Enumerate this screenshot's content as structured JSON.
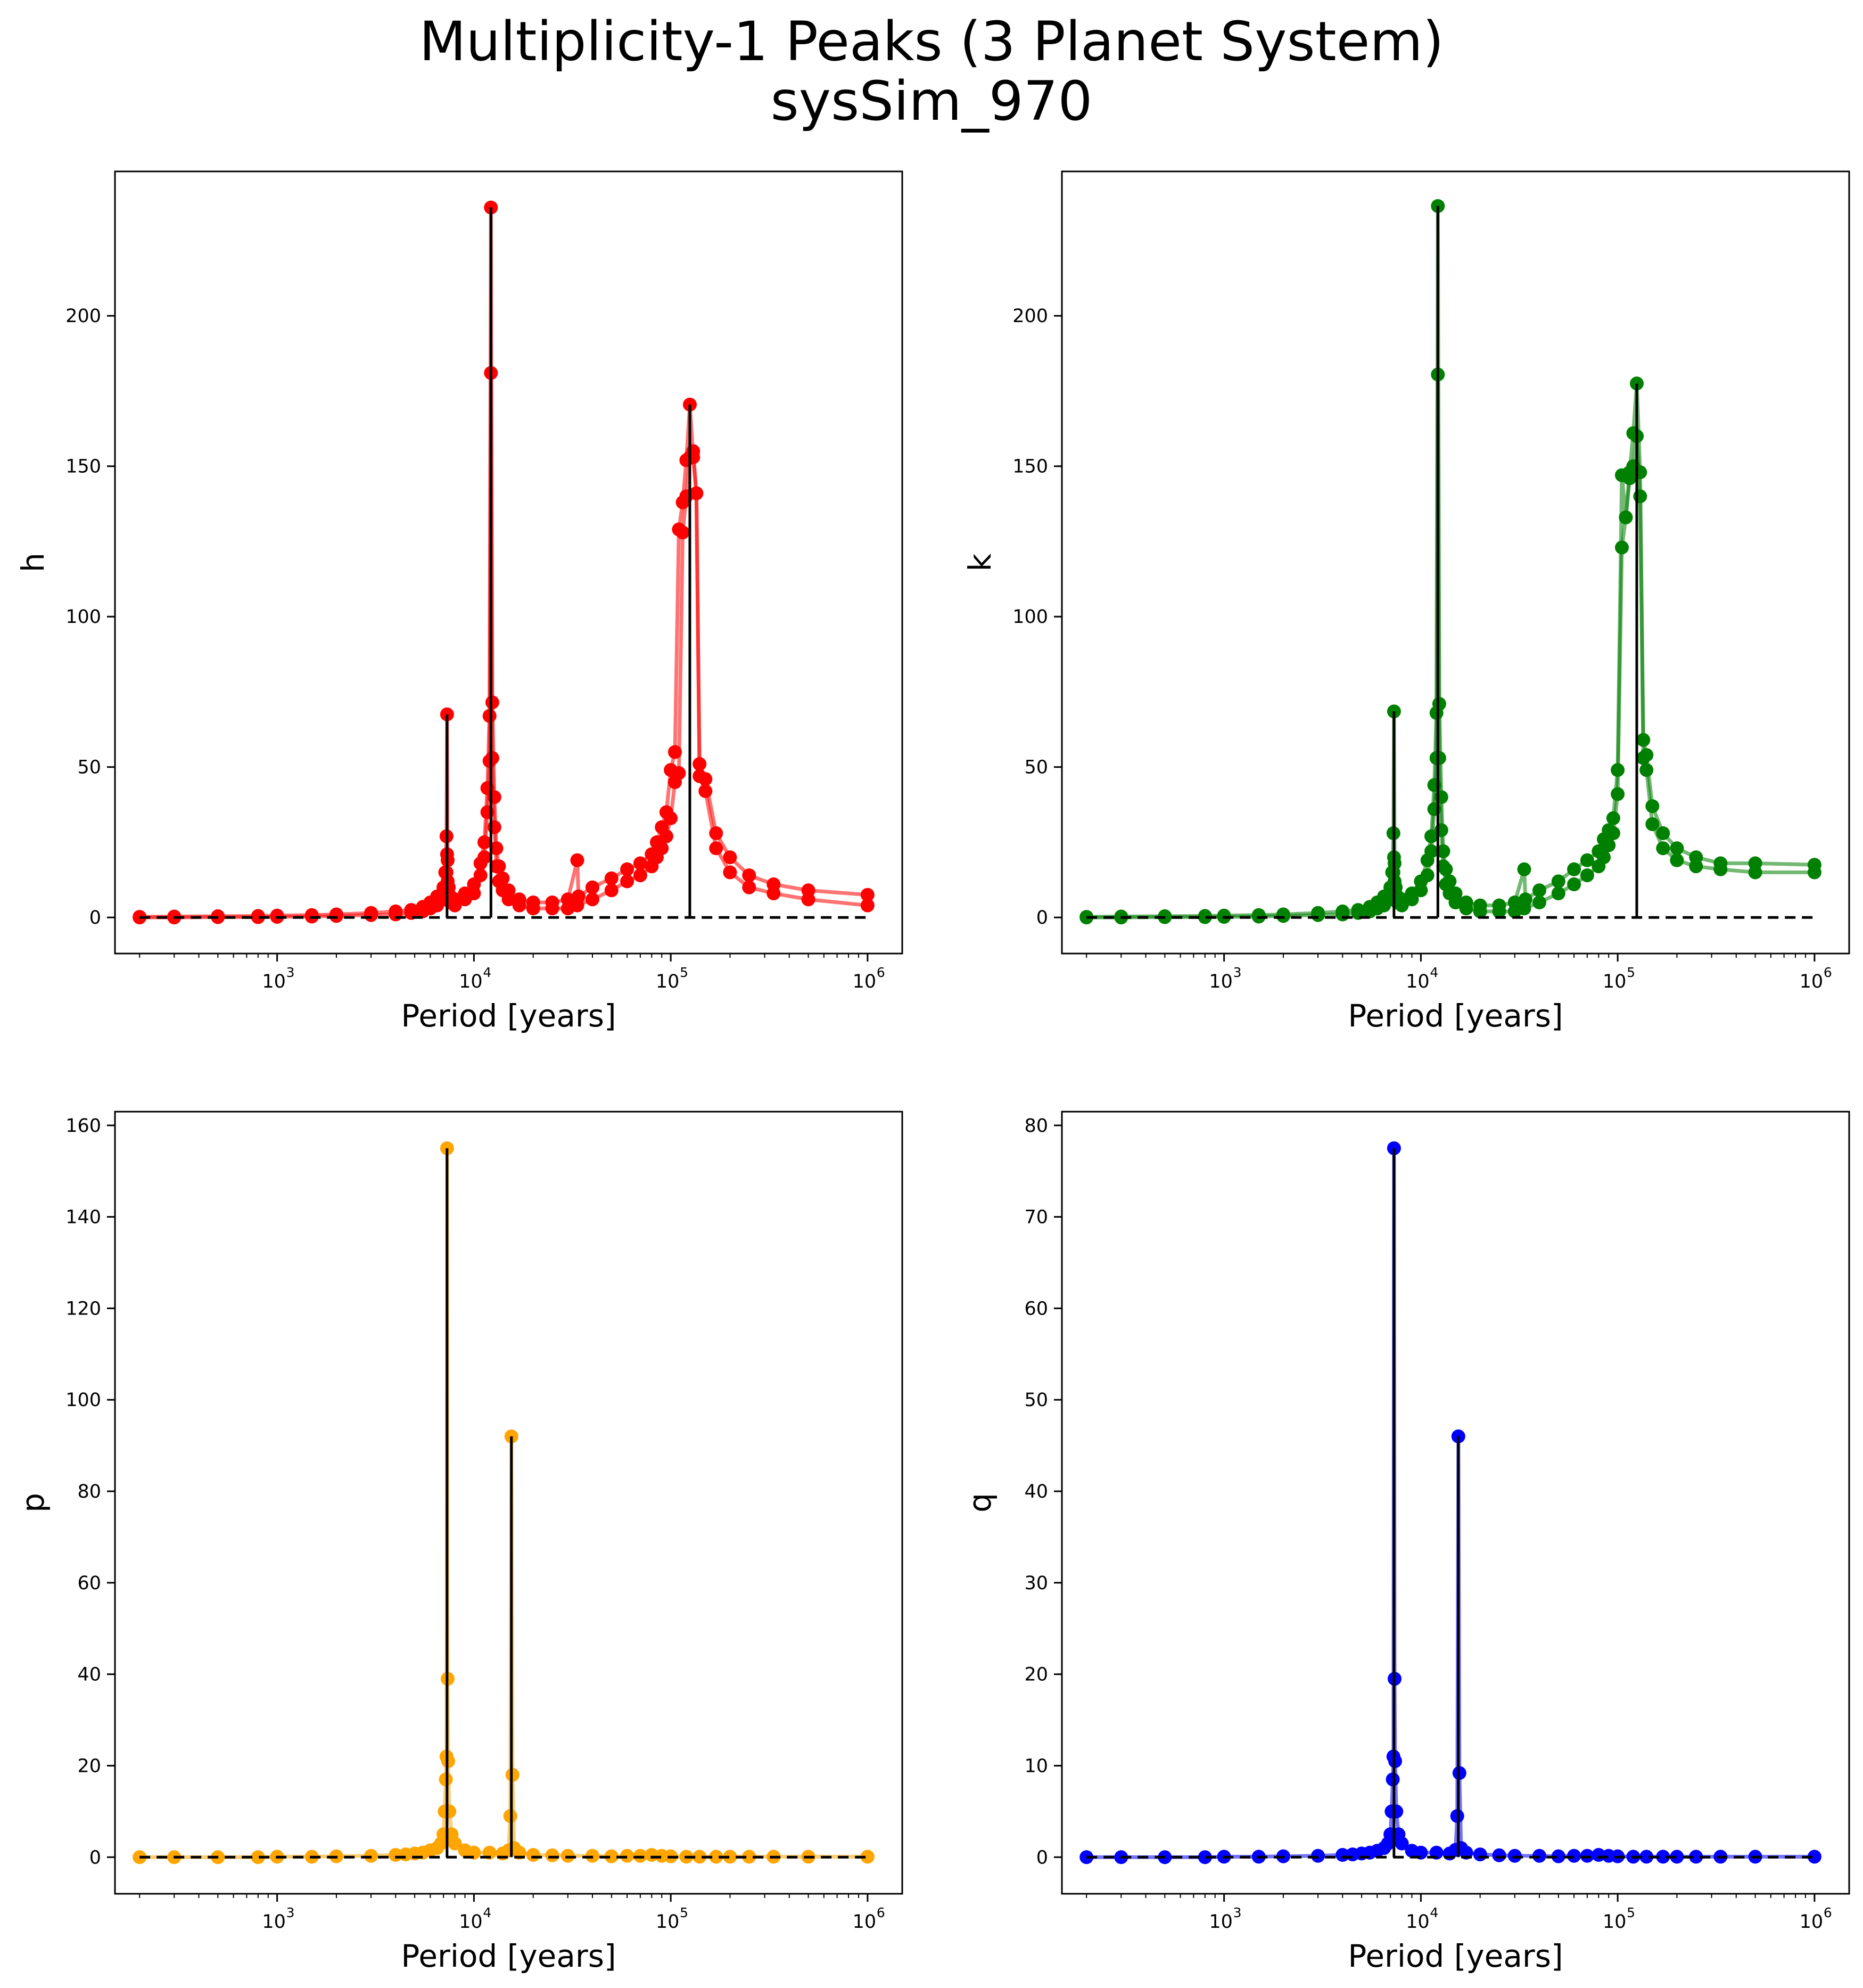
{
  "figure": {
    "title_line1": "Multiplicity-1 Peaks (3 Planet System)",
    "title_line2": "sysSim_970"
  },
  "chart_data": [
    {
      "type": "scatter",
      "panel": "top-left",
      "xlabel": "Period [years]",
      "ylabel": "h",
      "xscale": "log",
      "xlim": [
        150,
        1500000
      ],
      "ylim": [
        -12,
        248
      ],
      "yticks": [
        0,
        50,
        100,
        150,
        200
      ],
      "color": "#ff0000",
      "peaks": [
        {
          "x": 7300,
          "y": 67.5
        },
        {
          "x": 12200,
          "y": 236
        },
        {
          "x": 125000,
          "y": 170.5
        }
      ],
      "series": [
        {
          "x": [
            200,
            300,
            500,
            800,
            1000,
            1500,
            2000,
            3000,
            4000,
            4800,
            5500,
            6000,
            6500,
            7000,
            7150,
            7250,
            7300,
            7350,
            7450,
            7600,
            8000,
            9000,
            10000,
            10800,
            11300,
            11700,
            12000,
            12200,
            12400,
            12700,
            13000,
            13400,
            14000,
            15000,
            17000,
            20000,
            25000,
            30000,
            33500,
            34000,
            40000,
            50000,
            60000,
            70000,
            80000,
            85000,
            90000,
            95000,
            100000,
            105000,
            110000,
            115000,
            120000,
            125000,
            130000,
            135000,
            140000,
            150000,
            170000,
            200000,
            250000,
            333000,
            500000,
            1000000
          ],
          "y": [
            0.2,
            0.3,
            0.4,
            0.5,
            0.6,
            0.8,
            1,
            1.5,
            2,
            2.5,
            3.5,
            5,
            7,
            10,
            15,
            27,
            67.5,
            19,
            10,
            7,
            6,
            8,
            11,
            18,
            25,
            43,
            67,
            236,
            71.5,
            40,
            23,
            17,
            13,
            9,
            6,
            5,
            5,
            6,
            19,
            7,
            10,
            13,
            16,
            18,
            21,
            25,
            30,
            35,
            49,
            55,
            129,
            138,
            152,
            170.5,
            153,
            141,
            51,
            46,
            28,
            20,
            14,
            11,
            9,
            7.5
          ]
        },
        {
          "x": [
            200,
            300,
            500,
            800,
            1000,
            1500,
            2000,
            3000,
            4000,
            4800,
            5500,
            6000,
            6500,
            7000,
            7150,
            7250,
            7300,
            7350,
            7450,
            7600,
            8000,
            9000,
            10000,
            10800,
            11300,
            11700,
            12000,
            12200,
            12400,
            12700,
            13000,
            13400,
            14000,
            15000,
            17000,
            20000,
            25000,
            30000,
            33500,
            40000,
            50000,
            60000,
            70000,
            80000,
            85000,
            90000,
            95000,
            100000,
            105000,
            110000,
            115000,
            120000,
            125000,
            130000,
            135000,
            140000,
            150000,
            170000,
            200000,
            250000,
            333000,
            500000,
            1000000
          ],
          "y": [
            0,
            0,
            0.1,
            0.1,
            0.2,
            0.3,
            0.5,
            0.8,
            1,
            1.5,
            2,
            3,
            4,
            6,
            10,
            15,
            21,
            12,
            7,
            5,
            4,
            6,
            8,
            14,
            20,
            35,
            52,
            181,
            53,
            30,
            17,
            12,
            9,
            6,
            4,
            3,
            3,
            3,
            4,
            6,
            9,
            12,
            14,
            17,
            20,
            23,
            27,
            33,
            45,
            48,
            128,
            140,
            153,
            155,
            141,
            47,
            42,
            23,
            15,
            10,
            8,
            6,
            4
          ]
        }
      ]
    },
    {
      "type": "scatter",
      "panel": "top-right",
      "xlabel": "Period [years]",
      "ylabel": "k",
      "xscale": "log",
      "xlim": [
        150,
        1500000
      ],
      "ylim": [
        -12,
        248
      ],
      "yticks": [
        0,
        50,
        100,
        150,
        200
      ],
      "color": "#008000",
      "peaks": [
        {
          "x": 7300,
          "y": 68.5
        },
        {
          "x": 12200,
          "y": 236.5
        },
        {
          "x": 125000,
          "y": 177.5
        }
      ],
      "series": [
        {
          "x": [
            200,
            300,
            500,
            800,
            1000,
            1500,
            2000,
            3000,
            4000,
            4800,
            5500,
            6000,
            6500,
            7000,
            7150,
            7250,
            7300,
            7350,
            7450,
            7600,
            8000,
            9000,
            10000,
            10800,
            11300,
            11700,
            12000,
            12200,
            12400,
            12700,
            13000,
            13400,
            14000,
            15000,
            17000,
            20000,
            25000,
            30000,
            33500,
            34000,
            40000,
            50000,
            60000,
            70000,
            80000,
            85000,
            90000,
            95000,
            100000,
            105000,
            110000,
            115000,
            120000,
            125000,
            130000,
            135000,
            140000,
            150000,
            170000,
            200000,
            250000,
            333000,
            500000,
            1000000
          ],
          "y": [
            0.2,
            0.3,
            0.4,
            0.5,
            0.6,
            0.8,
            1,
            1.5,
            2,
            2.5,
            3.5,
            5,
            7,
            10,
            15,
            28,
            68.5,
            18,
            10,
            7,
            6,
            8,
            12,
            19,
            27,
            44,
            68,
            236.5,
            71,
            40,
            22,
            16,
            12,
            8,
            5,
            4,
            4,
            5,
            16,
            6,
            9,
            12,
            16,
            19,
            22,
            26,
            29,
            33,
            49,
            147,
            133,
            148,
            161,
            177.5,
            148,
            59,
            54,
            37,
            28,
            23,
            20,
            18,
            18,
            17.5
          ]
        },
        {
          "x": [
            200,
            300,
            500,
            800,
            1000,
            1500,
            2000,
            3000,
            4000,
            4800,
            5500,
            6000,
            6500,
            7000,
            7150,
            7250,
            7300,
            7350,
            7450,
            7600,
            8000,
            9000,
            10000,
            10800,
            11300,
            11700,
            12000,
            12200,
            12400,
            12700,
            13000,
            13400,
            14000,
            15000,
            17000,
            20000,
            25000,
            30000,
            33500,
            40000,
            50000,
            60000,
            70000,
            80000,
            85000,
            90000,
            95000,
            100000,
            105000,
            110000,
            115000,
            120000,
            125000,
            130000,
            135000,
            140000,
            150000,
            170000,
            200000,
            250000,
            333000,
            500000,
            1000000
          ],
          "y": [
            0,
            0,
            0.1,
            0.1,
            0.2,
            0.3,
            0.5,
            0.8,
            1,
            1.5,
            2,
            3,
            4,
            6,
            10,
            15,
            20,
            12,
            7,
            5,
            4,
            6,
            9,
            14,
            22,
            36,
            53,
            180.5,
            53,
            29,
            17,
            11,
            8,
            5,
            3,
            2,
            2,
            2,
            3,
            5,
            8,
            11,
            14,
            17,
            20,
            24,
            28,
            41,
            123,
            133,
            146,
            150,
            160,
            140,
            53,
            49,
            31,
            23,
            19,
            17,
            16,
            15,
            15
          ]
        }
      ]
    },
    {
      "type": "scatter",
      "panel": "bottom-left",
      "xlabel": "Period [years]",
      "ylabel": "p",
      "xscale": "log",
      "xlim": [
        150,
        1500000
      ],
      "ylim": [
        -8,
        163
      ],
      "yticks": [
        0,
        20,
        40,
        60,
        80,
        100,
        120,
        140,
        160
      ],
      "color": "#ffa500",
      "peaks": [
        {
          "x": 7300,
          "y": 155
        },
        {
          "x": 15500,
          "y": 92
        }
      ],
      "series": [
        {
          "x": [
            200,
            300,
            500,
            800,
            1000,
            1500,
            2000,
            3000,
            4000,
            4500,
            5000,
            5500,
            6000,
            6500,
            6800,
            7000,
            7100,
            7200,
            7250,
            7300,
            7350,
            7400,
            7500,
            7700,
            8000,
            9000,
            10000,
            12000,
            14000,
            15000,
            15300,
            15500,
            15700,
            16000,
            17000,
            20000,
            25000,
            30000,
            40000,
            50000,
            60000,
            70000,
            80000,
            90000,
            100000,
            120000,
            140000,
            170000,
            200000,
            250000,
            333000,
            500000,
            1000000
          ],
          "y": [
            0,
            0,
            0,
            0,
            0.1,
            0.1,
            0.2,
            0.3,
            0.5,
            0.6,
            0.8,
            1,
            1.5,
            2,
            3,
            5,
            10,
            17,
            22,
            155,
            39,
            21,
            10,
            5,
            3,
            1.5,
            1,
            1,
            0.8,
            1.5,
            9,
            92,
            18,
            2,
            1,
            0.5,
            0.4,
            0.3,
            0.3,
            0.2,
            0.3,
            0.3,
            0.5,
            0.3,
            0.2,
            0.1,
            0.1,
            0.1,
            0.1,
            0.1,
            0.1,
            0.1,
            0.1
          ]
        }
      ]
    },
    {
      "type": "scatter",
      "panel": "bottom-right",
      "xlabel": "Period [years]",
      "ylabel": "q",
      "xscale": "log",
      "xlim": [
        150,
        1500000
      ],
      "ylim": [
        -4,
        81.5
      ],
      "yticks": [
        0,
        10,
        20,
        30,
        40,
        50,
        60,
        70,
        80
      ],
      "color": "#0000ff",
      "peaks": [
        {
          "x": 7300,
          "y": 77.5
        },
        {
          "x": 15500,
          "y": 46
        }
      ],
      "series": [
        {
          "x": [
            200,
            300,
            500,
            800,
            1000,
            1500,
            2000,
            3000,
            4000,
            4500,
            5000,
            5500,
            6000,
            6500,
            6800,
            7000,
            7100,
            7200,
            7250,
            7300,
            7350,
            7400,
            7500,
            7700,
            8000,
            9000,
            10000,
            12000,
            14000,
            15000,
            15300,
            15500,
            15700,
            16000,
            17000,
            20000,
            25000,
            30000,
            40000,
            50000,
            60000,
            70000,
            80000,
            90000,
            100000,
            120000,
            140000,
            170000,
            200000,
            250000,
            333000,
            500000,
            1000000
          ],
          "y": [
            0,
            0,
            0,
            0,
            0.05,
            0.05,
            0.1,
            0.15,
            0.25,
            0.3,
            0.4,
            0.5,
            0.7,
            1,
            1.5,
            2.5,
            5,
            8.5,
            11,
            77.5,
            19.5,
            10.5,
            5,
            2.5,
            1.5,
            0.7,
            0.5,
            0.5,
            0.4,
            0.8,
            4.5,
            46,
            9.2,
            1,
            0.5,
            0.3,
            0.2,
            0.15,
            0.15,
            0.1,
            0.15,
            0.15,
            0.25,
            0.15,
            0.1,
            0.05,
            0.05,
            0.05,
            0.05,
            0.05,
            0.05,
            0.05,
            0.05
          ]
        }
      ]
    }
  ]
}
